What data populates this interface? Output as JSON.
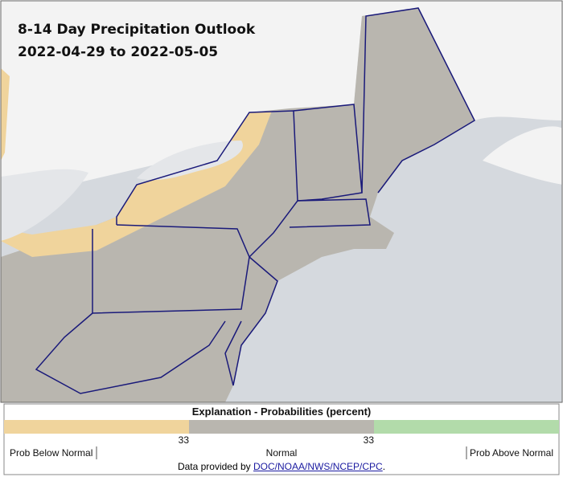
{
  "title": "8-14 Day Precipitation Outlook",
  "subtitle": "2022-04-29 to 2022-05-05",
  "legend": {
    "title": "Explanation - Probabilities (percent)",
    "colors": [
      "#f0d49c",
      "#b9b6af",
      "#b2dbaa"
    ],
    "ticks": [
      "33",
      "33"
    ],
    "labels": [
      "Prob Below Normal",
      "Normal",
      "Prob Above Normal"
    ]
  },
  "credit": {
    "text": "Data provided by",
    "link": "DOC/NOAA/NWS/NCEP/CPC",
    "end": "."
  }
}
